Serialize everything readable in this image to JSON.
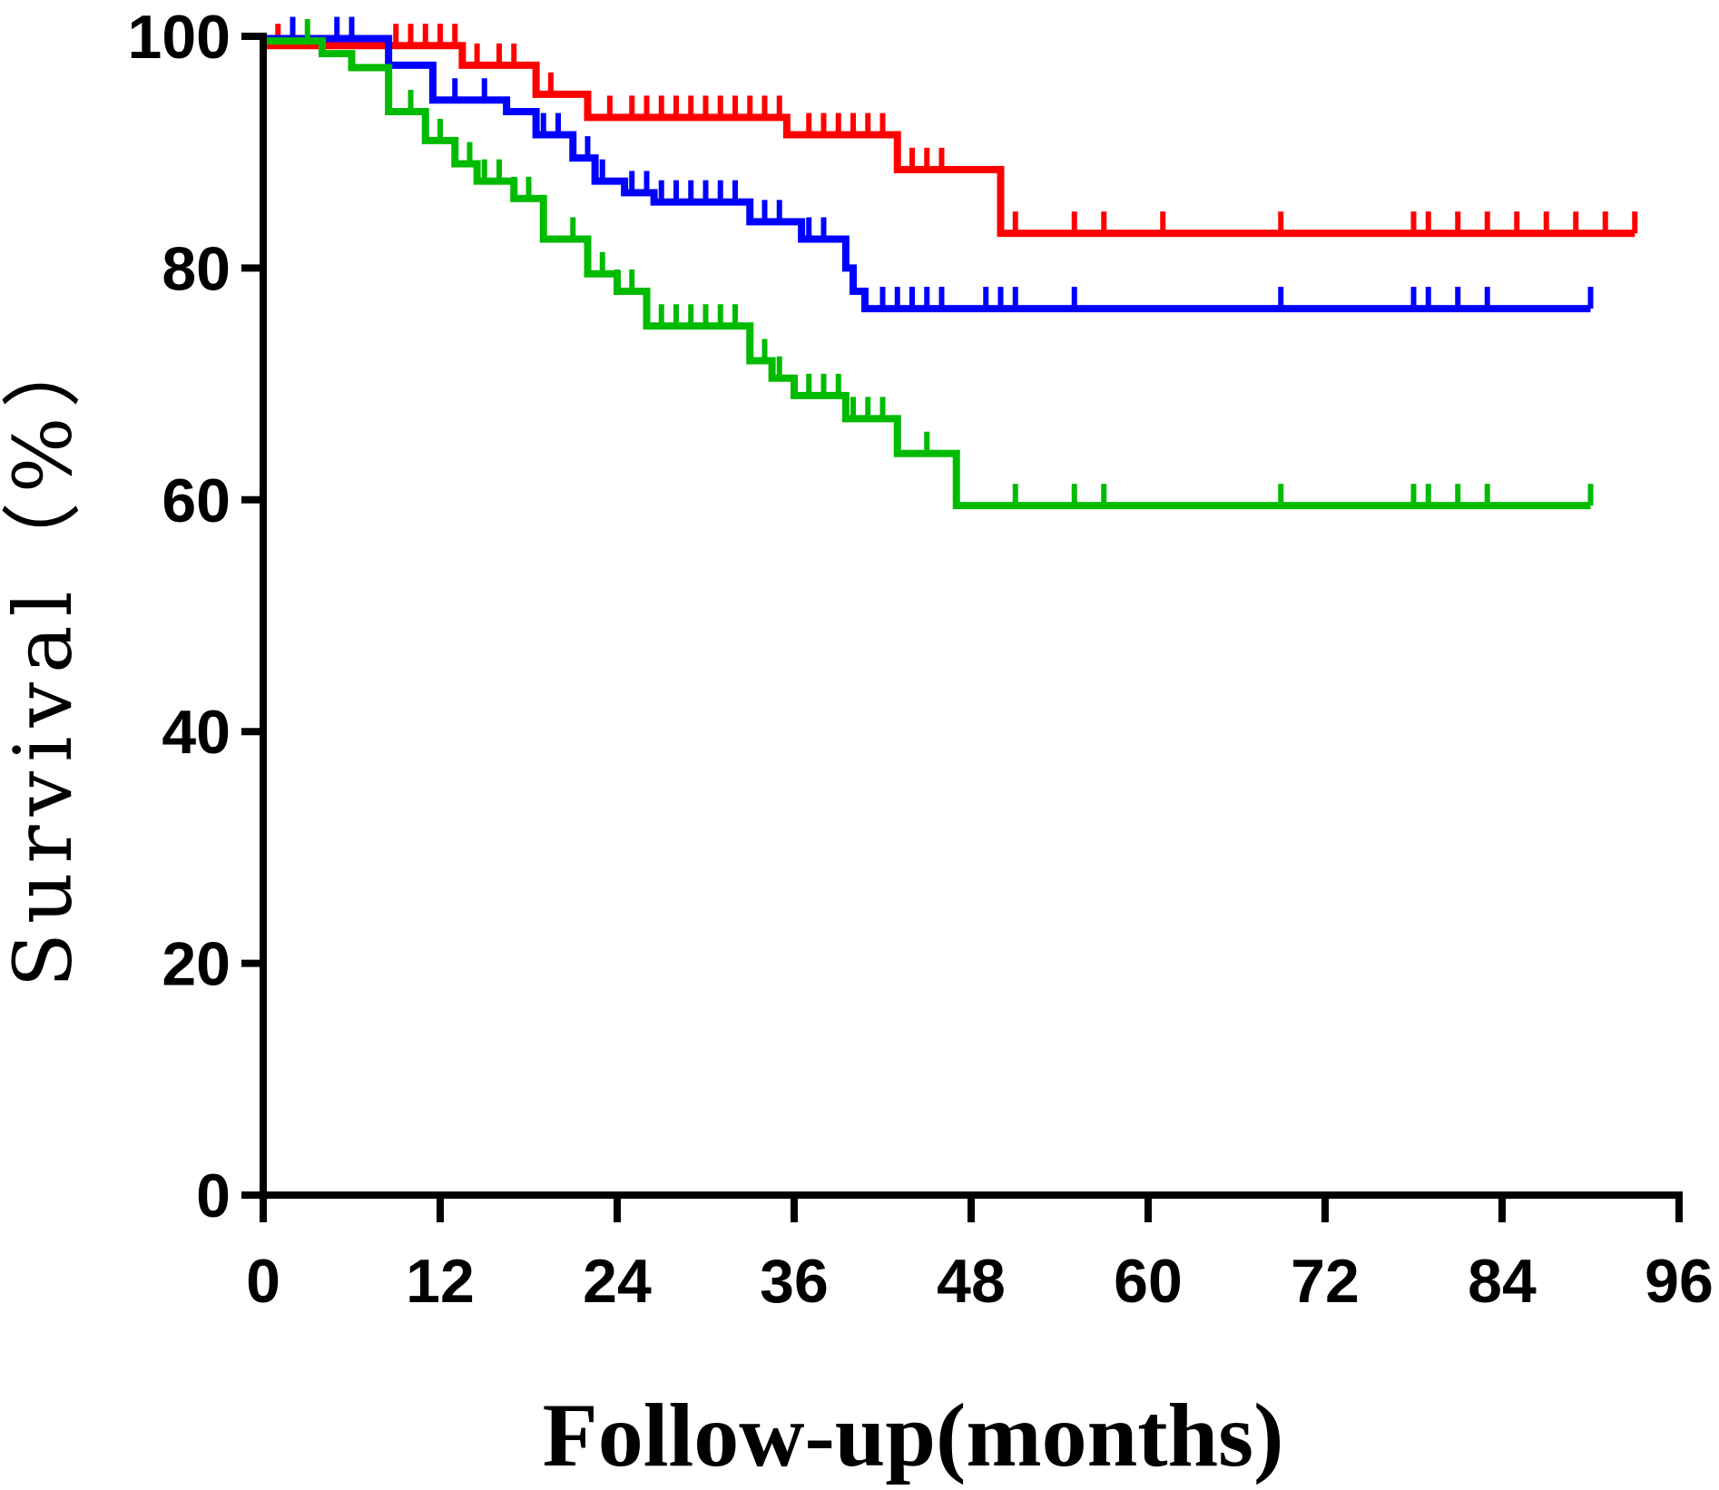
{
  "chart_data": {
    "type": "line",
    "step": true,
    "title": "",
    "xlabel": "Follow-up(months)",
    "ylabel": "Survival（%）",
    "xlim": [
      0,
      96
    ],
    "ylim": [
      0,
      100
    ],
    "xticks": [
      "0",
      "12",
      "24",
      "36",
      "48",
      "60",
      "72",
      "84",
      "96"
    ],
    "yticks": [
      "0",
      "20",
      "40",
      "60",
      "80",
      "100"
    ],
    "grid": false,
    "legend": "none",
    "series": [
      {
        "color": "#ff0000",
        "steps": [
          [
            0,
            99.2
          ],
          [
            13.5,
            97.5
          ],
          [
            18.5,
            95.0
          ],
          [
            22,
            93.0
          ],
          [
            35.5,
            91.5
          ],
          [
            43,
            88.5
          ],
          [
            50,
            83.0
          ],
          [
            93,
            83.0
          ]
        ],
        "censor_times": [
          1,
          2,
          9,
          10,
          11,
          12,
          13,
          14.5,
          16,
          17,
          18.5,
          19.5,
          23.5,
          25,
          26,
          27,
          28,
          29,
          30,
          31,
          32,
          33,
          34,
          35,
          37,
          38,
          39,
          40,
          41,
          42,
          44,
          45,
          46,
          51,
          55,
          57,
          61,
          69,
          78,
          79,
          81,
          83,
          85,
          87,
          89,
          91,
          93
        ]
      },
      {
        "color": "#0000ff",
        "steps": [
          [
            0,
            99.8
          ],
          [
            8.5,
            97.5
          ],
          [
            11.5,
            94.5
          ],
          [
            16.5,
            93.5
          ],
          [
            18.5,
            91.5
          ],
          [
            21,
            89.5
          ],
          [
            22.5,
            87.5
          ],
          [
            24.5,
            86.5
          ],
          [
            26.5,
            85.7
          ],
          [
            33,
            84.0
          ],
          [
            36.5,
            82.5
          ],
          [
            39.5,
            80.0
          ],
          [
            40,
            78.0
          ],
          [
            40.8,
            76.5
          ],
          [
            90,
            76.5
          ]
        ],
        "censor_times": [
          2,
          5,
          6,
          13,
          15,
          19,
          20,
          22,
          23,
          25,
          26,
          27,
          28,
          29,
          30,
          31,
          32,
          34,
          35,
          37,
          38,
          42,
          43,
          44,
          45,
          46,
          49,
          50,
          51,
          55,
          69,
          78,
          79,
          81,
          83,
          90
        ]
      },
      {
        "color": "#00bb00",
        "steps": [
          [
            0,
            99.6
          ],
          [
            4,
            98.5
          ],
          [
            6,
            97.3
          ],
          [
            8.5,
            93.5
          ],
          [
            11,
            91.0
          ],
          [
            13,
            89.0
          ],
          [
            14.5,
            87.5
          ],
          [
            17,
            86.0
          ],
          [
            19,
            82.5
          ],
          [
            22,
            79.5
          ],
          [
            24,
            78.0
          ],
          [
            26,
            75.0
          ],
          [
            33,
            72.0
          ],
          [
            34.5,
            70.5
          ],
          [
            36,
            69.0
          ],
          [
            39.5,
            67.0
          ],
          [
            43,
            64.0
          ],
          [
            47,
            59.5
          ],
          [
            90,
            59.5
          ]
        ],
        "censor_times": [
          3,
          10,
          11,
          12,
          14,
          15,
          16,
          17,
          18,
          21,
          22,
          23,
          24,
          25,
          27,
          28,
          29,
          30,
          31,
          32,
          34,
          35,
          37,
          38,
          39,
          40,
          41,
          42,
          45,
          51,
          55,
          57,
          69,
          78,
          79,
          81,
          83,
          90
        ]
      }
    ]
  }
}
